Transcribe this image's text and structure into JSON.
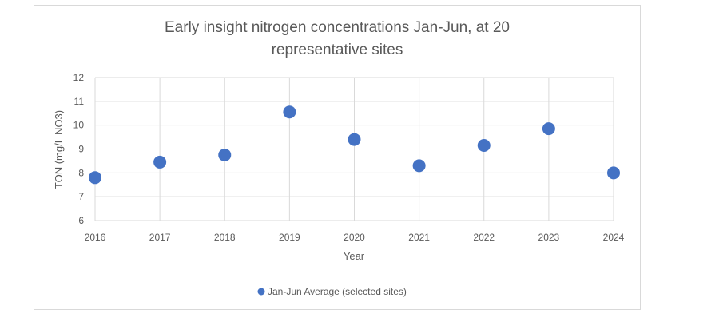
{
  "chart_data": {
    "type": "scatter",
    "title_line1": "Early insight nitrogen concentrations Jan-Jun, at 20",
    "title_line2": "representative sites",
    "xlabel": "Year",
    "ylabel": "TON (mg/L NO3)",
    "x": [
      2016,
      2017,
      2018,
      2019,
      2020,
      2021,
      2022,
      2023,
      2024
    ],
    "series": [
      {
        "name": "Jan-Jun Average (selected sites)",
        "values": [
          7.8,
          8.45,
          8.75,
          10.55,
          9.4,
          8.3,
          9.15,
          9.85,
          8.0
        ],
        "color": "#4472c4"
      }
    ],
    "xlim": [
      2016,
      2024
    ],
    "ylim": [
      6,
      12
    ],
    "yticks": [
      6,
      7,
      8,
      9,
      10,
      11,
      12
    ],
    "xticks": [
      2016,
      2017,
      2018,
      2019,
      2020,
      2021,
      2022,
      2023,
      2024
    ],
    "grid": "horizontal and vertical",
    "legend_position": "bottom"
  }
}
